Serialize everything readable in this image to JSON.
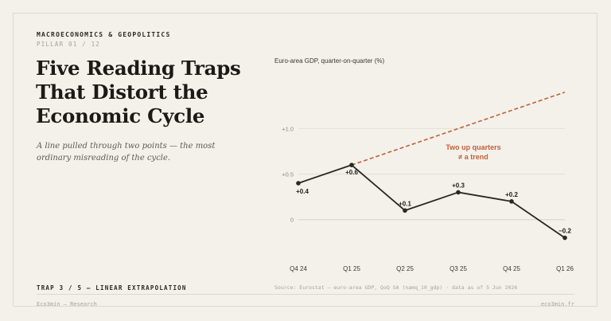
{
  "header": {
    "kicker": "MACROECONOMICS & GEOPOLITICS",
    "pillar": "PILLAR 01 / 12"
  },
  "title": "Five Reading Traps That Distort the Economic Cycle",
  "subtitle": "A line pulled through two points — the most ordinary misreading of the cycle.",
  "chart_caption": "Euro-area GDP, quarter-on-quarter (%)",
  "footer": {
    "trap": "TRAP 3 / 5 — LINEAR EXTRAPOLATION",
    "source": "Source: Eurostat — euro-area GDP, QoQ SA (namq_10_gdp) · data as of 5 Jun 2026",
    "brand": "Eco3min — Research",
    "site": "eco3min.fr"
  },
  "colors": {
    "background": "#f4f1ea",
    "line": "#2a2825",
    "extrapolation": "#c0603a",
    "annotation": "#c0603a",
    "grid": "#e3dfd4",
    "zero_line": "#d8d2bf"
  },
  "chart_data": {
    "type": "line",
    "title": "Euro-area GDP, quarter-on-quarter (%)",
    "categories": [
      "Q4 24",
      "Q1 25",
      "Q2 25",
      "Q3 25",
      "Q4 25",
      "Q1 26"
    ],
    "series": [
      {
        "values": [
          0.4,
          0.6,
          0.1,
          0.3,
          0.2,
          -0.2
        ]
      }
    ],
    "data_labels": [
      "+0.4",
      "+0.6",
      "+0.1",
      "+0.3",
      "+0.2",
      "−0.2"
    ],
    "y_ticks": [
      0,
      0.5,
      1.0
    ],
    "y_tick_labels": [
      "0",
      "+0.5",
      "+1.0"
    ],
    "extrapolation": {
      "from_index": 0,
      "through_index": 1,
      "to_index": 5,
      "values": [
        0.6,
        1.4
      ],
      "style": "dashed"
    },
    "annotation": [
      "Two up quarters",
      "≠ a trend"
    ],
    "ylim": [
      -0.3,
      1.45
    ],
    "grid": true
  }
}
